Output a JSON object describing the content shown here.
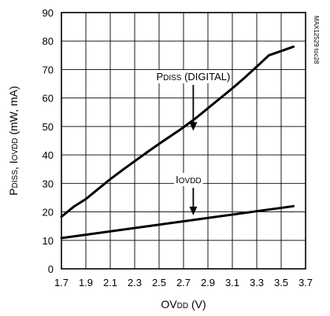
{
  "chart_data": {
    "type": "line",
    "xlabel_parts": [
      "OV",
      "DD",
      " (V)"
    ],
    "ylabel_parts": [
      "P",
      "DISS",
      ", I",
      "OVDD",
      " (mW, mA)"
    ],
    "xlim": [
      1.7,
      3.7
    ],
    "ylim": [
      0,
      90
    ],
    "x_ticks": [
      1.7,
      1.9,
      2.1,
      2.3,
      2.5,
      2.7,
      2.9,
      3.1,
      3.3,
      3.5,
      3.7
    ],
    "y_ticks": [
      0,
      10,
      20,
      30,
      40,
      50,
      60,
      70,
      80,
      90
    ],
    "grid": true,
    "series": [
      {
        "name": "PDISS (DIGITAL)",
        "x": [
          1.7,
          1.8,
          1.9,
          2.0,
          2.1,
          2.2,
          2.3,
          2.4,
          2.5,
          2.6,
          2.7,
          2.8,
          2.9,
          3.0,
          3.1,
          3.2,
          3.3,
          3.4,
          3.5,
          3.6
        ],
        "y": [
          18.3,
          21.8,
          24.5,
          28.0,
          31.5,
          34.7,
          37.8,
          40.9,
          43.9,
          46.8,
          49.7,
          52.9,
          56.4,
          59.9,
          63.4,
          67.1,
          71.0,
          75.0,
          76.5,
          78.0
        ]
      },
      {
        "name": "IOVDD",
        "x": [
          1.7,
          3.6
        ],
        "y": [
          10.8,
          22.0
        ]
      }
    ],
    "annotations": [
      {
        "parts": [
          "P",
          "DISS",
          " (DIGITAL)"
        ],
        "arrow_to": [
          2.78,
          48.5
        ]
      },
      {
        "parts": [
          "I",
          "OVDD",
          ""
        ],
        "arrow_to": [
          2.78,
          18.8
        ]
      }
    ],
    "side_label": "MAX12529 toc28"
  },
  "colors": {
    "line": "#000000",
    "grid": "#000000",
    "background": "#ffffff"
  }
}
